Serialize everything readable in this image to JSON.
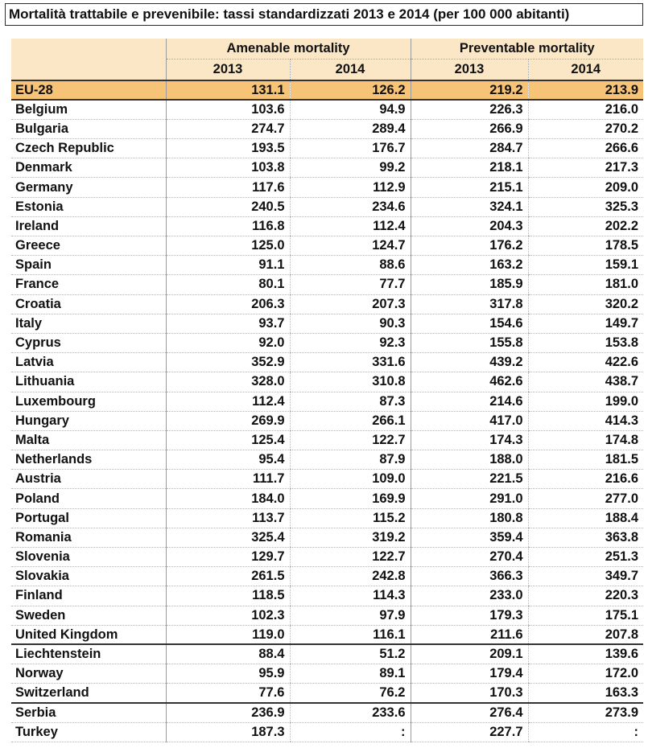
{
  "title": "Mortalità trattabile e prevenibile:  tassi standardizzati 2013 e 2014 (per 100 000 abitanti)",
  "table": {
    "group_headers": [
      "Amenable mortality",
      "Preventable mortality"
    ],
    "year_headers": [
      "2013",
      "2014",
      "2013",
      "2014"
    ],
    "rows": [
      {
        "name": "EU-28",
        "v": [
          "131.1",
          "126.2",
          "219.2",
          "213.9"
        ]
      },
      {
        "name": "Belgium",
        "v": [
          "103.6",
          "94.9",
          "226.3",
          "216.0"
        ]
      },
      {
        "name": "Bulgaria",
        "v": [
          "274.7",
          "289.4",
          "266.9",
          "270.2"
        ]
      },
      {
        "name": "Czech Republic",
        "v": [
          "193.5",
          "176.7",
          "284.7",
          "266.6"
        ]
      },
      {
        "name": "Denmark",
        "v": [
          "103.8",
          "99.2",
          "218.1",
          "217.3"
        ]
      },
      {
        "name": "Germany",
        "v": [
          "117.6",
          "112.9",
          "215.1",
          "209.0"
        ]
      },
      {
        "name": "Estonia",
        "v": [
          "240.5",
          "234.6",
          "324.1",
          "325.3"
        ]
      },
      {
        "name": "Ireland",
        "v": [
          "116.8",
          "112.4",
          "204.3",
          "202.2"
        ]
      },
      {
        "name": "Greece",
        "v": [
          "125.0",
          "124.7",
          "176.2",
          "178.5"
        ]
      },
      {
        "name": "Spain",
        "v": [
          "91.1",
          "88.6",
          "163.2",
          "159.1"
        ]
      },
      {
        "name": "France",
        "v": [
          "80.1",
          "77.7",
          "185.9",
          "181.0"
        ]
      },
      {
        "name": "Croatia",
        "v": [
          "206.3",
          "207.3",
          "317.8",
          "320.2"
        ]
      },
      {
        "name": "Italy",
        "v": [
          "93.7",
          "90.3",
          "154.6",
          "149.7"
        ]
      },
      {
        "name": "Cyprus",
        "v": [
          "92.0",
          "92.3",
          "155.8",
          "153.8"
        ]
      },
      {
        "name": "Latvia",
        "v": [
          "352.9",
          "331.6",
          "439.2",
          "422.6"
        ]
      },
      {
        "name": "Lithuania",
        "v": [
          "328.0",
          "310.8",
          "462.6",
          "438.7"
        ]
      },
      {
        "name": "Luxembourg",
        "v": [
          "112.4",
          "87.3",
          "214.6",
          "199.0"
        ]
      },
      {
        "name": "Hungary",
        "v": [
          "269.9",
          "266.1",
          "417.0",
          "414.3"
        ]
      },
      {
        "name": "Malta",
        "v": [
          "125.4",
          "122.7",
          "174.3",
          "174.8"
        ]
      },
      {
        "name": "Netherlands",
        "v": [
          "95.4",
          "87.9",
          "188.0",
          "181.5"
        ]
      },
      {
        "name": "Austria",
        "v": [
          "111.7",
          "109.0",
          "221.5",
          "216.6"
        ]
      },
      {
        "name": "Poland",
        "v": [
          "184.0",
          "169.9",
          "291.0",
          "277.0"
        ]
      },
      {
        "name": "Portugal",
        "v": [
          "113.7",
          "115.2",
          "180.8",
          "188.4"
        ]
      },
      {
        "name": "Romania",
        "v": [
          "325.4",
          "319.2",
          "359.4",
          "363.8"
        ]
      },
      {
        "name": "Slovenia",
        "v": [
          "129.7",
          "122.7",
          "270.4",
          "251.3"
        ]
      },
      {
        "name": "Slovakia",
        "v": [
          "261.5",
          "242.8",
          "366.3",
          "349.7"
        ]
      },
      {
        "name": "Finland",
        "v": [
          "118.5",
          "114.3",
          "233.0",
          "220.3"
        ]
      },
      {
        "name": "Sweden",
        "v": [
          "102.3",
          "97.9",
          "179.3",
          "175.1"
        ]
      },
      {
        "name": "United Kingdom",
        "v": [
          "119.0",
          "116.1",
          "211.6",
          "207.8"
        ]
      },
      {
        "name": "Liechtenstein",
        "v": [
          "88.4",
          "51.2",
          "209.1",
          "139.6"
        ]
      },
      {
        "name": "Norway",
        "v": [
          "95.9",
          "89.1",
          "179.4",
          "172.0"
        ]
      },
      {
        "name": "Switzerland",
        "v": [
          "77.6",
          "76.2",
          "170.3",
          "163.3"
        ]
      },
      {
        "name": "Serbia",
        "v": [
          "236.9",
          "233.6",
          "276.4",
          "273.9"
        ]
      },
      {
        "name": "Turkey",
        "v": [
          "187.3",
          ":",
          "227.7",
          ":"
        ]
      }
    ]
  }
}
